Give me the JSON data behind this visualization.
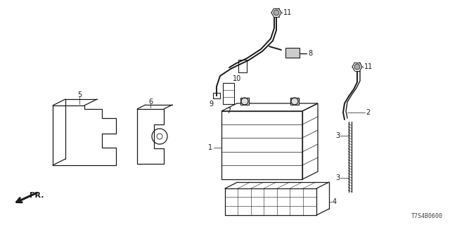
{
  "bg_color": "#ffffff",
  "line_color": "#1a1a1a",
  "footer_code": "T7S4B0600",
  "direction_label": "FR.",
  "figsize": [
    6.4,
    3.2
  ],
  "dpi": 100
}
